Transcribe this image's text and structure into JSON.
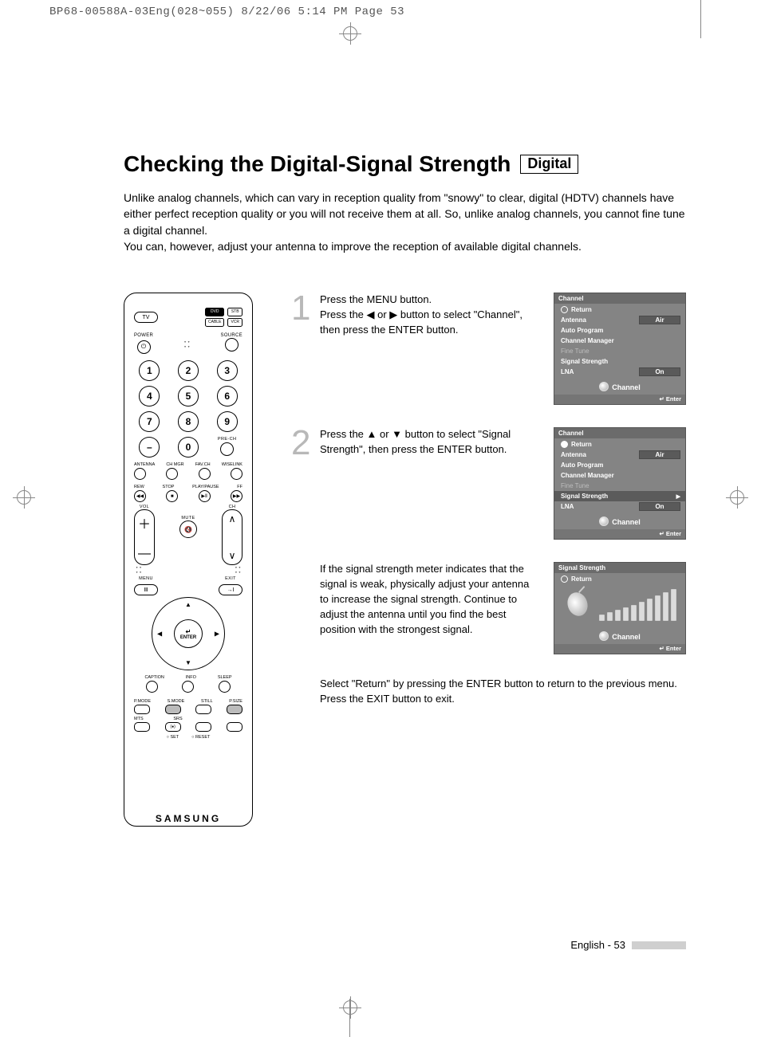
{
  "crop_header": "BP68-00588A-03Eng(028~055)  8/22/06  5:14 PM  Page 53",
  "title": "Checking the Digital-Signal Strength",
  "title_tag": "Digital",
  "intro_lines": [
    "Unlike analog channels, which can vary in reception quality from \"snowy\" to clear, digital (HDTV) channels have either perfect reception quality or you will not receive them at all. So, unlike analog channels, you cannot fine tune a digital channel.",
    "You can, however, adjust your antenna to improve the reception of available digital channels."
  ],
  "steps": [
    {
      "num": "1",
      "text": "Press the MENU button.\nPress the ◀ or ▶ button to select \"Channel\", then press the ENTER button."
    },
    {
      "num": "2",
      "text": "Press the ▲ or ▼ button to select \"Signal Strength\", then press the ENTER button."
    },
    {
      "num": "",
      "text": "If the signal strength meter indicates that the signal is weak, physically adjust your antenna to increase the signal strength. Continue to adjust the antenna until you find the best position with the strongest signal."
    },
    {
      "num": "",
      "text": "Select \"Return\" by pressing the ENTER button to return to the previous menu. Press the EXIT button to exit."
    }
  ],
  "osd_menu": {
    "title": "Channel",
    "return": "Return",
    "rows": [
      {
        "label": "Antenna",
        "value": "Air"
      },
      {
        "label": "Auto Program"
      },
      {
        "label": "Channel Manager"
      },
      {
        "label": "Fine Tune",
        "disabled": true
      },
      {
        "label": "Signal Strength"
      },
      {
        "label": "LNA",
        "value": "On"
      }
    ],
    "foot1": "Channel",
    "foot2": "Enter"
  },
  "osd_menu2_selected": 4,
  "osd_signal": {
    "title": "Signal Strength",
    "return": "Return",
    "foot1": "Channel",
    "foot2": "Enter",
    "bars": [
      6,
      9,
      12,
      15,
      18,
      22,
      26,
      30,
      34,
      38
    ]
  },
  "remote": {
    "top_oval": "TV",
    "top_rects": [
      "DVD",
      "STB",
      "CABLE",
      "VCR"
    ],
    "power": "POWER",
    "source": "SOURCE",
    "nums": [
      "1",
      "2",
      "3",
      "4",
      "5",
      "6",
      "7",
      "8",
      "9",
      "–",
      "0"
    ],
    "prech": "PRE-CH",
    "row_a": [
      "ANTENNA",
      "CH MGR",
      "FAV.CH",
      "WISELINK"
    ],
    "row_b": [
      "REW",
      "STOP",
      "PLAY/PAUSE",
      "FF"
    ],
    "vol": "VOL",
    "ch": "CH",
    "mute": "MUTE",
    "menu": "MENU",
    "exit": "EXIT",
    "enter": "ENTER",
    "row_c": [
      "CAPTION",
      "INFO",
      "SLEEP"
    ],
    "row_d": [
      "P.MODE",
      "S.MODE",
      "STILL",
      "P.SIZE"
    ],
    "row_e": [
      "MTS",
      "SRS"
    ],
    "row_f": [
      "SET",
      "RESET"
    ],
    "brand": "SAMSUNG"
  },
  "footer": "English - 53"
}
